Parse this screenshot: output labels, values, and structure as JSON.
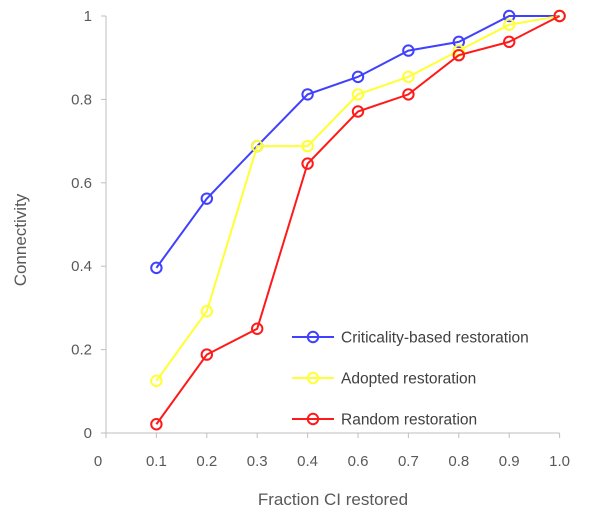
{
  "chart_data": {
    "type": "line",
    "title": "",
    "xlabel": "Fraction CI restored",
    "ylabel": "Connectivity",
    "categories": [
      "0.1",
      "0.2",
      "0.3",
      "0.4",
      "0.6",
      "0.7",
      "0.8",
      "0.9",
      "1.0"
    ],
    "x_axis_origin_label": "0",
    "ylim": [
      0,
      1
    ],
    "yticks": [
      "0",
      "0.2",
      "0.4",
      "0.6",
      "0.8",
      "1"
    ],
    "ytick_values": [
      0,
      0.2,
      0.4,
      0.6,
      0.8,
      1
    ],
    "grid": false,
    "legend_position": "bottom-right",
    "series": [
      {
        "name": "Criticality-based restoration",
        "color": "#4040ff",
        "values": [
          0.396,
          0.562,
          0.688,
          0.812,
          0.854,
          0.917,
          0.938,
          1.0,
          1.0
        ]
      },
      {
        "name": "Adopted restoration",
        "color": "#ffff33",
        "values": [
          0.125,
          0.292,
          0.688,
          0.688,
          0.812,
          0.854,
          0.917,
          0.979,
          1.0
        ]
      },
      {
        "name": "Random restoration",
        "color": "#ff1a1a",
        "values": [
          0.021,
          0.188,
          0.25,
          0.646,
          0.771,
          0.812,
          0.906,
          0.938,
          1.0
        ]
      }
    ]
  }
}
